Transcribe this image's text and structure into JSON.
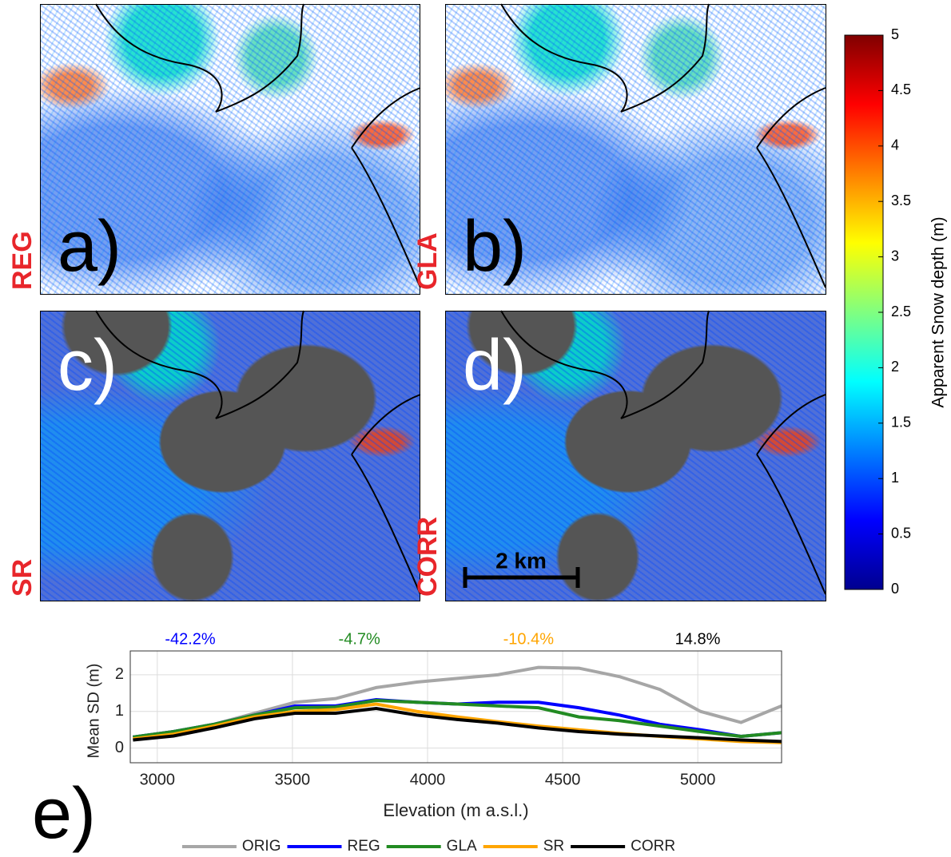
{
  "panels": [
    {
      "label": "a)",
      "method": "REG"
    },
    {
      "label": "b)",
      "method": "GLA"
    },
    {
      "label": "c)",
      "method": "SR"
    },
    {
      "label": "d)",
      "method": "CORR"
    }
  ],
  "scale_bar": "2 km",
  "chart_data": [
    {
      "type": "colorbar",
      "label": "Apparent Snow depth (m)",
      "colors": [
        "#00008f",
        "#0000ff",
        "#0080ff",
        "#00ffff",
        "#80ff80",
        "#ffff00",
        "#ff8000",
        "#ff0000",
        "#800000"
      ],
      "ylim": [
        0,
        5
      ],
      "yticks": [
        0,
        0.5,
        1,
        1.5,
        2,
        2.5,
        3,
        3.5,
        4,
        4.5,
        5
      ]
    },
    {
      "type": "line",
      "panel_label": "e)",
      "xlabel": "Elevation (m a.s.l.)",
      "ylabel": "Mean SD (m)",
      "x": [
        2910,
        3060,
        3210,
        3360,
        3510,
        3660,
        3810,
        3960,
        4110,
        4260,
        4410,
        4560,
        4710,
        4860,
        5010,
        5160,
        5310
      ],
      "series": [
        {
          "name": "ORIG",
          "color": "#a6a6a6",
          "values": [
            0.3,
            0.45,
            0.65,
            0.95,
            1.25,
            1.35,
            1.65,
            1.8,
            1.9,
            2.0,
            2.2,
            2.18,
            1.95,
            1.6,
            1.0,
            0.7,
            1.15
          ]
        },
        {
          "name": "REG",
          "color": "#0000ff",
          "values": [
            0.3,
            0.45,
            0.65,
            0.9,
            1.15,
            1.15,
            1.32,
            1.25,
            1.2,
            1.25,
            1.25,
            1.1,
            0.9,
            0.65,
            0.5,
            0.32,
            0.42
          ]
        },
        {
          "name": "GLA",
          "color": "#228b22",
          "values": [
            0.3,
            0.45,
            0.65,
            0.9,
            1.1,
            1.12,
            1.3,
            1.25,
            1.2,
            1.15,
            1.1,
            0.85,
            0.75,
            0.6,
            0.45,
            0.32,
            0.42
          ]
        },
        {
          "name": "SR",
          "color": "#ffa500",
          "values": [
            0.25,
            0.38,
            0.6,
            0.85,
            1.0,
            1.05,
            1.2,
            1.0,
            0.85,
            0.72,
            0.6,
            0.5,
            0.4,
            0.32,
            0.25,
            0.18,
            0.15
          ]
        },
        {
          "name": "CORR",
          "color": "#000000",
          "values": [
            0.22,
            0.33,
            0.55,
            0.8,
            0.95,
            0.95,
            1.08,
            0.9,
            0.78,
            0.68,
            0.55,
            0.45,
            0.38,
            0.33,
            0.28,
            0.22,
            0.18
          ]
        }
      ],
      "annotations": [
        {
          "text": "-42.2%",
          "color": "#0000ff"
        },
        {
          "text": "-4.7%",
          "color": "#228b22"
        },
        {
          "text": "-10.4%",
          "color": "#ffa500"
        },
        {
          "text": "14.8%",
          "color": "#000000"
        }
      ],
      "xlim": [
        2900,
        5310
      ],
      "xticks": [
        3000,
        3500,
        4000,
        4500,
        5000
      ],
      "ylim": [
        -0.4,
        2.65
      ],
      "yticks": [
        0,
        1,
        2
      ],
      "grid": true,
      "legend": "bottom"
    }
  ]
}
